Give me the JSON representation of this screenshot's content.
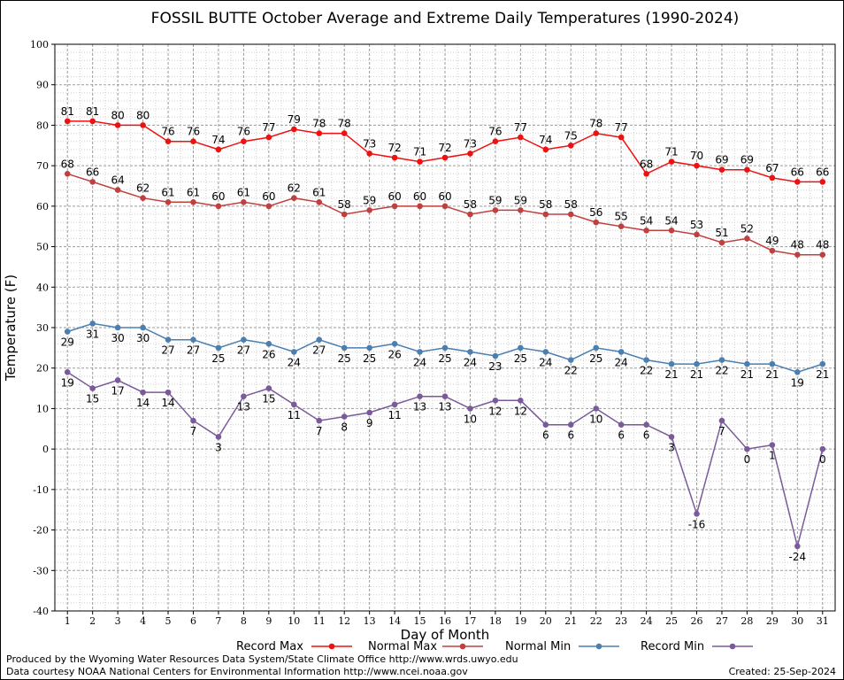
{
  "chart_data": {
    "type": "line",
    "title": "FOSSIL BUTTE October Average and Extreme Daily Temperatures (1990-2024)",
    "xlabel": "Day of Month",
    "ylabel": "Temperature (F)",
    "ylim": [
      -40,
      100
    ],
    "yticks": [
      "-40",
      "-30",
      "-20",
      "-10",
      "0",
      "10",
      "20",
      "30",
      "40",
      "50",
      "60",
      "70",
      "80",
      "90",
      "100"
    ],
    "x": [
      "1",
      "2",
      "3",
      "4",
      "5",
      "6",
      "7",
      "8",
      "9",
      "10",
      "11",
      "12",
      "13",
      "14",
      "15",
      "16",
      "17",
      "18",
      "19",
      "20",
      "21",
      "22",
      "23",
      "24",
      "25",
      "26",
      "27",
      "28",
      "29",
      "30",
      "31"
    ],
    "grid": true,
    "legend_position": "bottom",
    "series": [
      {
        "name": "Record Max",
        "color": "#ee1111",
        "label_pos": "above",
        "values": [
          81,
          81,
          80,
          80,
          76,
          76,
          74,
          76,
          77,
          79,
          78,
          78,
          73,
          72,
          71,
          72,
          73,
          76,
          77,
          74,
          75,
          78,
          77,
          68,
          71,
          70,
          69,
          69,
          67,
          66,
          66
        ]
      },
      {
        "name": "Normal Max",
        "color": "#c04040",
        "label_pos": "above",
        "values": [
          68,
          66,
          64,
          62,
          61,
          61,
          60,
          61,
          60,
          62,
          61,
          58,
          59,
          60,
          60,
          60,
          58,
          59,
          59,
          58,
          58,
          56,
          55,
          54,
          54,
          53,
          51,
          52,
          49,
          48,
          48
        ]
      },
      {
        "name": "Normal Min",
        "color": "#4a7fb0",
        "label_pos": "below",
        "values": [
          29,
          31,
          30,
          30,
          27,
          27,
          25,
          27,
          26,
          24,
          27,
          25,
          25,
          26,
          24,
          25,
          24,
          23,
          25,
          24,
          22,
          25,
          24,
          22,
          21,
          21,
          22,
          21,
          21,
          19,
          21
        ]
      },
      {
        "name": "Record Min",
        "color": "#7a5a9a",
        "label_pos": "below",
        "values": [
          19,
          15,
          17,
          14,
          14,
          7,
          3,
          13,
          15,
          11,
          7,
          8,
          9,
          11,
          13,
          13,
          10,
          12,
          12,
          6,
          6,
          10,
          6,
          6,
          3,
          -16,
          7,
          0,
          1,
          -24,
          0
        ]
      }
    ]
  },
  "footer": {
    "line1": "Produced by the Wyoming Water Resources Data System/State Climate Office http://www.wrds.uwyo.edu",
    "line2": "Data courtesy NOAA National Centers for Environmental Information http://www.ncei.noaa.gov",
    "created": "Created:  25-Sep-2024"
  }
}
